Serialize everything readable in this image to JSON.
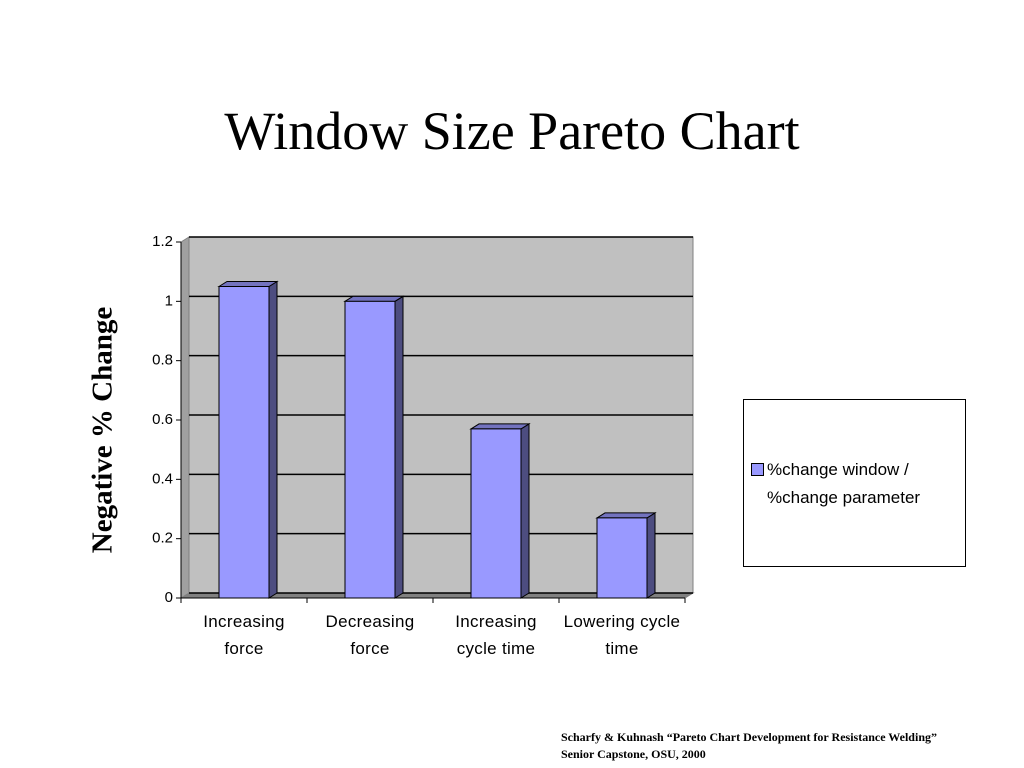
{
  "chart_data": {
    "type": "bar",
    "title": "Window Size Pareto Chart",
    "y_label": "Negative % Change",
    "categories": [
      "Increasing force",
      "Decreasing force",
      "Increasing cycle time",
      "Lowering cycle time"
    ],
    "series": [
      {
        "name": "%change window / %change parameter",
        "color": "#9999ff",
        "values": [
          1.05,
          1.0,
          0.57,
          0.27
        ]
      }
    ],
    "ylim": [
      0,
      1.2
    ],
    "yticks": [
      0,
      0.2,
      0.4,
      0.6,
      0.8,
      1,
      1.2
    ],
    "grid": true,
    "legend": "right",
    "footnote": [
      "Scharfy & Kuhnash “Pareto Chart Development for Resistance  Welding”",
      "Senior Capstone, OSU, 2000"
    ]
  }
}
